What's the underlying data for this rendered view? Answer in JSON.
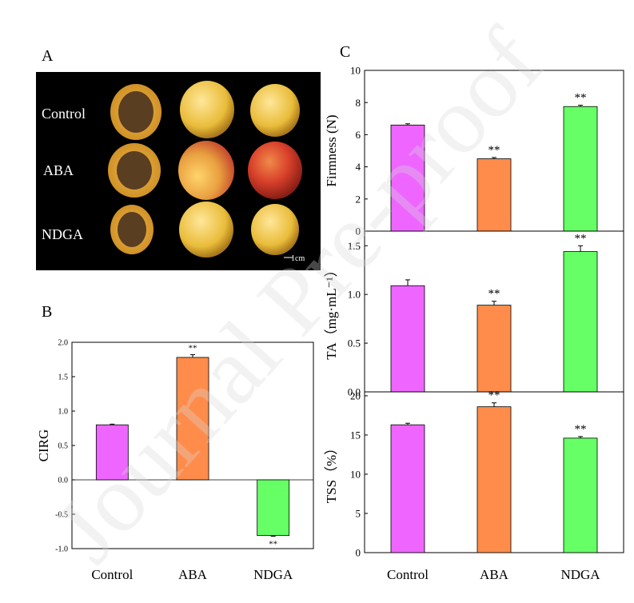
{
  "panel_labels": {
    "a": "A",
    "b": "B",
    "c": "C"
  },
  "photo": {
    "rows": [
      "Control",
      "ABA",
      "NDGA"
    ],
    "scale_bar": "1cm"
  },
  "watermark": "Journal Pre-proof",
  "colors": {
    "control": "#ee66ff",
    "aba": "#ff8c4a",
    "ndga": "#66ff66"
  },
  "chart_data": [
    {
      "id": "B",
      "type": "bar",
      "categories": [
        "Control",
        "ABA",
        "NDGA"
      ],
      "values": [
        0.8,
        1.78,
        -0.81
      ],
      "errors": [
        0.01,
        0.04,
        0.01
      ],
      "significance": [
        "",
        "**",
        "**"
      ],
      "ylabel": "CIRG",
      "ylim": [
        -1.0,
        2.0
      ],
      "yticks": [
        -1.0,
        -0.5,
        0.0,
        0.5,
        1.0,
        1.5,
        2.0
      ],
      "ytick_labels": [
        "-1.0",
        "-0.5",
        "0.0",
        "0.5",
        "1.0",
        "1.5",
        "2.0"
      ]
    },
    {
      "id": "C-firmness",
      "type": "bar",
      "categories": [
        "Control",
        "ABA",
        "NDGA"
      ],
      "values": [
        6.6,
        4.5,
        7.75
      ],
      "errors": [
        0.08,
        0.08,
        0.08
      ],
      "significance": [
        "",
        "**",
        "**"
      ],
      "ylabel": "Firmness (N)",
      "ylim": [
        0,
        10
      ],
      "yticks": [
        0,
        2,
        4,
        6,
        8,
        10
      ],
      "ytick_labels": [
        "0",
        "2",
        "4",
        "6",
        "8",
        "10"
      ]
    },
    {
      "id": "C-ta",
      "type": "bar",
      "categories": [
        "Control",
        "ABA",
        "NDGA"
      ],
      "values": [
        1.09,
        0.89,
        1.44
      ],
      "errors": [
        0.06,
        0.04,
        0.06
      ],
      "significance": [
        "",
        "**",
        "**"
      ],
      "ylabel": "TA（mg·mL⁻¹）",
      "ylim": [
        0.0,
        1.65
      ],
      "yticks": [
        0.0,
        0.5,
        1.0,
        1.5
      ],
      "ytick_labels": [
        "0.0",
        "0.5",
        "1.0",
        "1.5"
      ]
    },
    {
      "id": "C-tss",
      "type": "bar",
      "categories": [
        "Control",
        "ABA",
        "NDGA"
      ],
      "values": [
        16.3,
        18.6,
        14.6
      ],
      "errors": [
        0.2,
        0.5,
        0.2
      ],
      "significance": [
        "",
        "**",
        "**"
      ],
      "ylabel": "TSS（%）",
      "ylim": [
        0,
        20.5
      ],
      "yticks": [
        0,
        5,
        10,
        15,
        20
      ],
      "ytick_labels": [
        "0",
        "5",
        "10",
        "15",
        "20"
      ]
    }
  ]
}
